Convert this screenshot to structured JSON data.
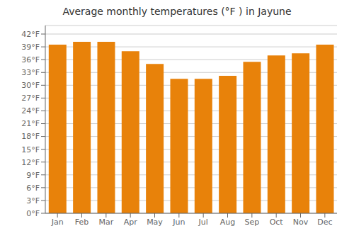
{
  "chart_data": {
    "type": "bar",
    "title": "Average monthly temperatures (°F ) in Jayune",
    "categories": [
      "Jan",
      "Feb",
      "Mar",
      "Apr",
      "May",
      "Jun",
      "Jul",
      "Aug",
      "Sep",
      "Oct",
      "Nov",
      "Dec"
    ],
    "values": [
      39.5,
      40.2,
      40.2,
      38.0,
      35.0,
      31.5,
      31.5,
      32.2,
      35.5,
      37.0,
      37.5,
      39.5
    ],
    "color": "#E8820A",
    "ylim": [
      0,
      44
    ],
    "yticks": [
      {
        "value": 0,
        "label": "0°F"
      },
      {
        "value": 3,
        "label": "3°F"
      },
      {
        "value": 6,
        "label": "6°F"
      },
      {
        "value": 9,
        "label": "9°F"
      },
      {
        "value": 12,
        "label": "12°F"
      },
      {
        "value": 15,
        "label": "15°F"
      },
      {
        "value": 18,
        "label": "18°F"
      },
      {
        "value": 21,
        "label": "21°F"
      },
      {
        "value": 24,
        "label": "24°F"
      },
      {
        "value": 27,
        "label": "27°F"
      },
      {
        "value": 30,
        "label": "30°F"
      },
      {
        "value": 33,
        "label": "33°F"
      },
      {
        "value": 36,
        "label": "36°F"
      },
      {
        "value": 39,
        "label": "39°F"
      },
      {
        "value": 42,
        "label": "42°F"
      }
    ],
    "grid": true
  }
}
